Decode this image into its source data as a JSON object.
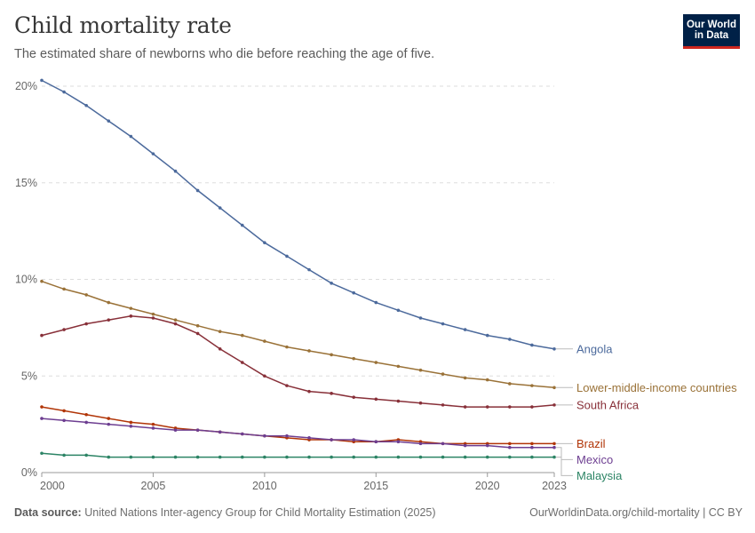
{
  "header": {
    "title": "Child mortality rate",
    "subtitle": "The estimated share of newborns who die before reaching the age of five."
  },
  "logo": {
    "line1": "Our World",
    "line2": "in Data"
  },
  "footer": {
    "source_label": "Data source:",
    "source_text": "United Nations Inter-agency Group for Child Mortality Estimation (2025)",
    "right_text": "OurWorldinData.org/child-mortality | CC BY"
  },
  "chart_data": {
    "type": "line",
    "x": [
      2000,
      2001,
      2002,
      2003,
      2004,
      2005,
      2006,
      2007,
      2008,
      2009,
      2010,
      2011,
      2012,
      2013,
      2014,
      2015,
      2016,
      2017,
      2018,
      2019,
      2020,
      2021,
      2022,
      2023
    ],
    "xlim": [
      2000,
      2023
    ],
    "ylim": [
      0,
      20
    ],
    "x_ticks": [
      {
        "value": 2000,
        "label": "2000"
      },
      {
        "value": 2005,
        "label": "2005"
      },
      {
        "value": 2010,
        "label": "2010"
      },
      {
        "value": 2015,
        "label": "2015"
      },
      {
        "value": 2020,
        "label": "2020"
      },
      {
        "value": 2023,
        "label": "2023"
      }
    ],
    "y_ticks": [
      {
        "value": 0,
        "label": "0%"
      },
      {
        "value": 5,
        "label": "5%"
      },
      {
        "value": 10,
        "label": "10%"
      },
      {
        "value": 15,
        "label": "15%"
      },
      {
        "value": 20,
        "label": "20%"
      }
    ],
    "grid": "horizontal dashed",
    "legend": "right, end-of-line labels",
    "series": [
      {
        "name": "Angola",
        "color": "#4c6a9c",
        "values": [
          20.3,
          19.7,
          19.0,
          18.2,
          17.4,
          16.5,
          15.6,
          14.6,
          13.7,
          12.8,
          11.9,
          11.2,
          10.5,
          9.8,
          9.3,
          8.8,
          8.4,
          8.0,
          7.7,
          7.4,
          7.1,
          6.9,
          6.6,
          6.4
        ]
      },
      {
        "name": "Lower-middle-income countries",
        "color": "#9a7238",
        "values": [
          9.9,
          9.5,
          9.2,
          8.8,
          8.5,
          8.2,
          7.9,
          7.6,
          7.3,
          7.1,
          6.8,
          6.5,
          6.3,
          6.1,
          5.9,
          5.7,
          5.5,
          5.3,
          5.1,
          4.9,
          4.8,
          4.6,
          4.5,
          4.4
        ]
      },
      {
        "name": "South Africa",
        "color": "#883039",
        "values": [
          7.1,
          7.4,
          7.7,
          7.9,
          8.1,
          8.0,
          7.7,
          7.2,
          6.4,
          5.7,
          5.0,
          4.5,
          4.2,
          4.1,
          3.9,
          3.8,
          3.7,
          3.6,
          3.5,
          3.4,
          3.4,
          3.4,
          3.4,
          3.5
        ]
      },
      {
        "name": "Brazil",
        "color": "#b13507",
        "values": [
          3.4,
          3.2,
          3.0,
          2.8,
          2.6,
          2.5,
          2.3,
          2.2,
          2.1,
          2.0,
          1.9,
          1.8,
          1.7,
          1.7,
          1.6,
          1.6,
          1.7,
          1.6,
          1.5,
          1.5,
          1.5,
          1.5,
          1.5,
          1.5
        ]
      },
      {
        "name": "Mexico",
        "color": "#6d3e91",
        "values": [
          2.8,
          2.7,
          2.6,
          2.5,
          2.4,
          2.3,
          2.2,
          2.2,
          2.1,
          2.0,
          1.9,
          1.9,
          1.8,
          1.7,
          1.7,
          1.6,
          1.6,
          1.5,
          1.5,
          1.4,
          1.4,
          1.3,
          1.3,
          1.3
        ]
      },
      {
        "name": "Malaysia",
        "color": "#2c8465",
        "values": [
          1.0,
          0.9,
          0.9,
          0.8,
          0.8,
          0.8,
          0.8,
          0.8,
          0.8,
          0.8,
          0.8,
          0.8,
          0.8,
          0.8,
          0.8,
          0.8,
          0.8,
          0.8,
          0.8,
          0.8,
          0.8,
          0.8,
          0.8,
          0.8
        ]
      }
    ]
  }
}
